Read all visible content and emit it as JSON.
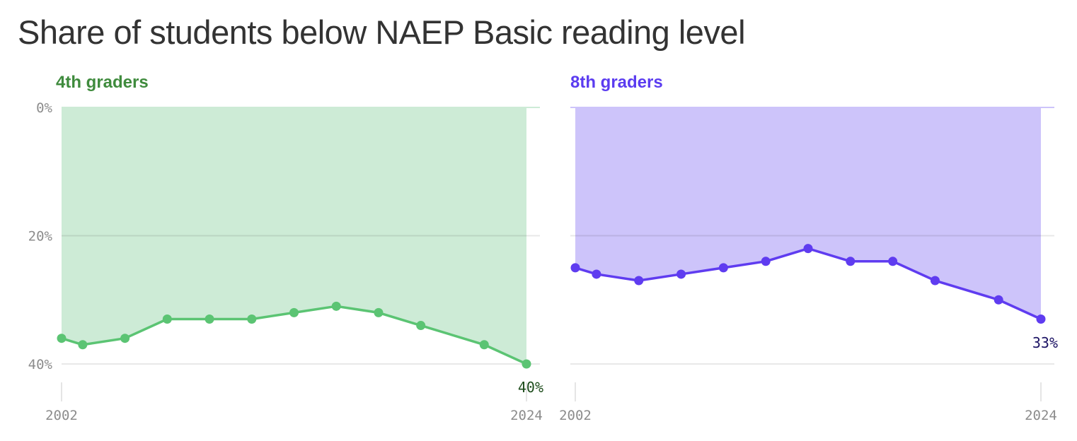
{
  "title": "Share of students below NAEP Basic reading level",
  "chart_data": [
    {
      "type": "area",
      "panel_title": "4th graders",
      "x": [
        2002,
        2003,
        2005,
        2007,
        2009,
        2011,
        2013,
        2015,
        2017,
        2019,
        2022,
        2024
      ],
      "values": [
        36,
        37,
        36,
        33,
        33,
        33,
        32,
        31,
        32,
        34,
        37,
        40
      ],
      "y_ticks": [
        "0%",
        "20%",
        "40%"
      ],
      "x_ticks": [
        "2002",
        "2024"
      ],
      "end_label": "40%",
      "ylim": [
        0,
        40
      ],
      "y_axis": "inverted (0% at top)",
      "color_line": "#5bc473",
      "color_fill": "#cdebd6",
      "color_title": "#3f8b3d",
      "color_end_label": "#1e4d1c"
    },
    {
      "type": "area",
      "panel_title": "8th graders",
      "x": [
        2002,
        2003,
        2005,
        2007,
        2009,
        2011,
        2013,
        2015,
        2017,
        2019,
        2022,
        2024
      ],
      "values": [
        25,
        26,
        27,
        26,
        25,
        24,
        22,
        24,
        24,
        27,
        30,
        33
      ],
      "y_ticks": [
        "0%",
        "20%",
        "40%"
      ],
      "x_ticks": [
        "2002",
        "2024"
      ],
      "end_label": "33%",
      "ylim": [
        0,
        40
      ],
      "y_axis": "inverted (0% at top)",
      "color_line": "#5f3cf0",
      "color_fill": "#cdc4fa",
      "color_title": "#5b3cf0",
      "color_end_label": "#1a1163"
    }
  ]
}
